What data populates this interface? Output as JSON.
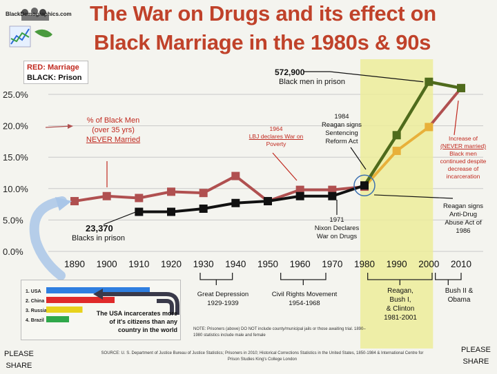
{
  "title_line1": "The War on Drugs and its effect on",
  "title_line2": "Black Marriage in the 1980s & 90s",
  "logo_text": "BlackDemographics.com",
  "legend": {
    "marriage": "RED: Marriage",
    "prison": "BLACK: Prison"
  },
  "colors": {
    "marriage": "#b05050",
    "prison": "#111111",
    "highlight": "#ecec9a",
    "post_marriage": "#e8b03a",
    "post_prison": "#4f6b1c",
    "title": "#c0422a"
  },
  "chart_data": {
    "type": "line",
    "x": [
      1890,
      1900,
      1910,
      1920,
      1930,
      1940,
      1950,
      1960,
      1970,
      1980,
      1990,
      2000,
      2010
    ],
    "xlim": [
      1885,
      2015
    ],
    "ylim": [
      0,
      25
    ],
    "y_ticks": [
      "25.0%",
      "20.0%",
      "15.0%",
      "10.0%",
      "5.0%",
      "0.0%"
    ],
    "x_ticks": [
      "1890",
      "1900",
      "1910",
      "1920",
      "1930",
      "1940",
      "1950",
      "1960",
      "1970",
      "1980",
      "1990",
      "2000",
      "2010"
    ],
    "series": [
      {
        "values": [
          8.0,
          8.8,
          8.5,
          9.5,
          9.3,
          12.0,
          8.0,
          9.8,
          9.8,
          10.3,
          16.0,
          19.8,
          26.0
        ]
      },
      {
        "values": [
          null,
          null,
          6.3,
          6.3,
          6.8,
          7.7,
          8.0,
          8.8,
          8.8,
          10.5,
          18.5,
          27.0,
          26.0
        ]
      }
    ],
    "highlight_range": [
      1980,
      2000
    ],
    "annotations": {
      "prison_2000": "572,900",
      "prison_2000_sub": "Black men in prison",
      "never_married": [
        "% of Black Men",
        "(over 35 yrs)",
        "NEVER Married"
      ],
      "lbj": [
        "1964",
        "LBJ declares War on",
        "Poverty"
      ],
      "reagan84": [
        "1984",
        "Reagan signs",
        "Sentencing",
        "Reform Act"
      ],
      "increase": [
        "Increase of",
        "(NEVER married)",
        "Black men",
        "continued despite",
        "decrease of",
        "incarceration"
      ],
      "reagan86": [
        "Reagan signs",
        "Anti-Drug",
        "Abuse Act of",
        "1986"
      ],
      "blacks_1910": "23,370",
      "blacks_1910_sub": "Blacks in prison",
      "nixon": [
        "1971",
        "Nixon Declares",
        "War on Drugs"
      ]
    },
    "eras": [
      {
        "label": [
          "Great Depression",
          "1929-1939"
        ]
      },
      {
        "label": [
          "Civil Rights Movement",
          "1954-1968"
        ]
      },
      {
        "label": [
          "Reagan,",
          "Bush I,",
          "& Clinton",
          "1981-2001"
        ]
      },
      {
        "label": [
          "Bush II &",
          "Obama"
        ]
      }
    ]
  },
  "inset": {
    "countries": [
      "1. USA",
      "2. China",
      "3. Russia",
      "4. Brazil"
    ],
    "bar_values": [
      1.0,
      0.66,
      0.35,
      0.22
    ],
    "bar_colors": [
      "#2f7fe0",
      "#e02a2a",
      "#e8d21c",
      "#2fa84a"
    ],
    "caption": [
      "The USA incarcerates more",
      "of it's citizens than any",
      "country in the world"
    ]
  },
  "note": "NOTE: Prisoners (above) DO NOT include county/municipal jails or those awaiting trial. 1890–1980 statistics include male and female",
  "source": "SOURCE: U. S. Department of Justice Bureau of Justice Statistics; Prisoners in 2010; Historical Corrections Statistics in the United States, 1850-1984 & International Centre for Prison Studies King's College London",
  "please_share": [
    "PLEASE",
    "SHARE"
  ]
}
